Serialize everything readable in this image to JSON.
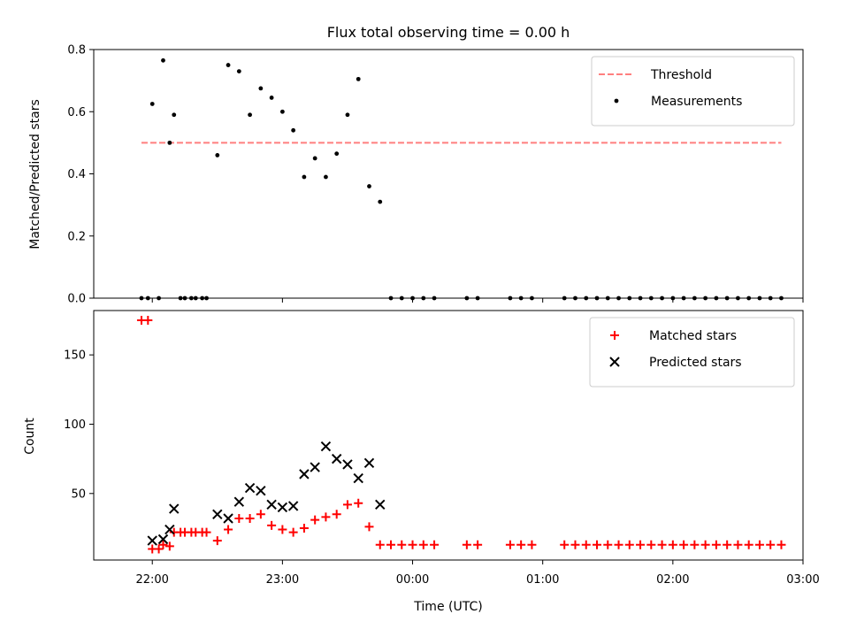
{
  "chart_data": {
    "type": "scatter",
    "title": "Flux total observing time = 0.00 h",
    "xlabel": "Time (UTC)",
    "x_tick_labels": [
      "22:00",
      "23:00",
      "00:00",
      "01:00",
      "02:00",
      "03:00"
    ],
    "x_ticks": [
      "2024-01-01 22:00",
      "2024-01-01 23:00",
      "2024-01-02 00:00",
      "2024-01-02 01:00",
      "2024-01-02 02:00",
      "2024-01-02 03:00"
    ],
    "xlim": [
      "2024-01-01 21:33",
      "2024-01-02 03:00"
    ],
    "panels": [
      {
        "ylabel": "Matched/Predicted stars",
        "ylim": [
          0,
          0.8
        ],
        "yticks": [
          0.0,
          0.2,
          0.4,
          0.6,
          0.8
        ],
        "ytick_labels": [
          "0.0",
          "0.2",
          "0.4",
          "0.6",
          "0.8"
        ],
        "legend_position": "upper right",
        "threshold": {
          "name": "Threshold",
          "y": 0.5,
          "x_start": "2024-01-01 21:55",
          "x_end": "2024-01-02 02:50",
          "color": "#ff7f7f",
          "style": "dashed"
        },
        "series": [
          {
            "name": "Measurements",
            "marker": "dot",
            "color": "#000000",
            "points": [
              [
                "2024-01-01 21:55",
                0.0
              ],
              [
                "2024-01-01 21:58",
                0.0
              ],
              [
                "2024-01-01 22:00",
                0.625
              ],
              [
                "2024-01-01 22:03",
                0.0
              ],
              [
                "2024-01-01 22:05",
                0.765
              ],
              [
                "2024-01-01 22:08",
                0.5
              ],
              [
                "2024-01-01 22:10",
                0.59
              ],
              [
                "2024-01-01 22:13",
                0.0
              ],
              [
                "2024-01-01 22:15",
                0.0
              ],
              [
                "2024-01-01 22:18",
                0.0
              ],
              [
                "2024-01-01 22:20",
                0.0
              ],
              [
                "2024-01-01 22:23",
                0.0
              ],
              [
                "2024-01-01 22:25",
                0.0
              ],
              [
                "2024-01-01 22:30",
                0.46
              ],
              [
                "2024-01-01 22:35",
                0.75
              ],
              [
                "2024-01-01 22:40",
                0.73
              ],
              [
                "2024-01-01 22:45",
                0.59
              ],
              [
                "2024-01-01 22:50",
                0.675
              ],
              [
                "2024-01-01 22:55",
                0.645
              ],
              [
                "2024-01-01 23:00",
                0.6
              ],
              [
                "2024-01-01 23:05",
                0.54
              ],
              [
                "2024-01-01 23:10",
                0.39
              ],
              [
                "2024-01-01 23:15",
                0.45
              ],
              [
                "2024-01-01 23:20",
                0.39
              ],
              [
                "2024-01-01 23:25",
                0.465
              ],
              [
                "2024-01-01 23:30",
                0.59
              ],
              [
                "2024-01-01 23:35",
                0.705
              ],
              [
                "2024-01-01 23:40",
                0.36
              ],
              [
                "2024-01-01 23:45",
                0.31
              ],
              [
                "2024-01-01 23:50",
                0.0
              ],
              [
                "2024-01-01 23:55",
                0.0
              ],
              [
                "2024-01-02 00:00",
                0.0
              ],
              [
                "2024-01-02 00:05",
                0.0
              ],
              [
                "2024-01-02 00:10",
                0.0
              ],
              [
                "2024-01-02 00:25",
                0.0
              ],
              [
                "2024-01-02 00:30",
                0.0
              ],
              [
                "2024-01-02 00:45",
                0.0
              ],
              [
                "2024-01-02 00:50",
                0.0
              ],
              [
                "2024-01-02 00:55",
                0.0
              ],
              [
                "2024-01-02 01:10",
                0.0
              ],
              [
                "2024-01-02 01:15",
                0.0
              ],
              [
                "2024-01-02 01:20",
                0.0
              ],
              [
                "2024-01-02 01:25",
                0.0
              ],
              [
                "2024-01-02 01:30",
                0.0
              ],
              [
                "2024-01-02 01:35",
                0.0
              ],
              [
                "2024-01-02 01:40",
                0.0
              ],
              [
                "2024-01-02 01:45",
                0.0
              ],
              [
                "2024-01-02 01:50",
                0.0
              ],
              [
                "2024-01-02 01:55",
                0.0
              ],
              [
                "2024-01-02 02:00",
                0.0
              ],
              [
                "2024-01-02 02:05",
                0.0
              ],
              [
                "2024-01-02 02:10",
                0.0
              ],
              [
                "2024-01-02 02:15",
                0.0
              ],
              [
                "2024-01-02 02:20",
                0.0
              ],
              [
                "2024-01-02 02:25",
                0.0
              ],
              [
                "2024-01-02 02:30",
                0.0
              ],
              [
                "2024-01-02 02:35",
                0.0
              ],
              [
                "2024-01-02 02:40",
                0.0
              ],
              [
                "2024-01-02 02:45",
                0.0
              ],
              [
                "2024-01-02 02:50",
                0.0
              ]
            ]
          }
        ]
      },
      {
        "ylabel": "Count",
        "ylim": [
          2,
          182
        ],
        "yticks": [
          50,
          100,
          150
        ],
        "ytick_labels": [
          "50",
          "100",
          "150"
        ],
        "legend_position": "upper right",
        "series": [
          {
            "name": "Matched stars",
            "marker": "plus",
            "color": "#ff0000",
            "points": [
              [
                "2024-01-01 21:55",
                175
              ],
              [
                "2024-01-01 21:58",
                175
              ],
              [
                "2024-01-01 22:00",
                10
              ],
              [
                "2024-01-01 22:03",
                10
              ],
              [
                "2024-01-01 22:05",
                13
              ],
              [
                "2024-01-01 22:08",
                12
              ],
              [
                "2024-01-01 22:10",
                22
              ],
              [
                "2024-01-01 22:13",
                22
              ],
              [
                "2024-01-01 22:15",
                22
              ],
              [
                "2024-01-01 22:18",
                22
              ],
              [
                "2024-01-01 22:20",
                22
              ],
              [
                "2024-01-01 22:23",
                22
              ],
              [
                "2024-01-01 22:25",
                22
              ],
              [
                "2024-01-01 22:30",
                16
              ],
              [
                "2024-01-01 22:35",
                24
              ],
              [
                "2024-01-01 22:40",
                32
              ],
              [
                "2024-01-01 22:45",
                32
              ],
              [
                "2024-01-01 22:50",
                35
              ],
              [
                "2024-01-01 22:55",
                27
              ],
              [
                "2024-01-01 23:00",
                24
              ],
              [
                "2024-01-01 23:05",
                22
              ],
              [
                "2024-01-01 23:10",
                25
              ],
              [
                "2024-01-01 23:15",
                31
              ],
              [
                "2024-01-01 23:20",
                33
              ],
              [
                "2024-01-01 23:25",
                35
              ],
              [
                "2024-01-01 23:30",
                42
              ],
              [
                "2024-01-01 23:35",
                43
              ],
              [
                "2024-01-01 23:40",
                26
              ],
              [
                "2024-01-01 23:45",
                13
              ],
              [
                "2024-01-01 23:50",
                13
              ],
              [
                "2024-01-01 23:55",
                13
              ],
              [
                "2024-01-02 00:00",
                13
              ],
              [
                "2024-01-02 00:05",
                13
              ],
              [
                "2024-01-02 00:10",
                13
              ],
              [
                "2024-01-02 00:25",
                13
              ],
              [
                "2024-01-02 00:30",
                13
              ],
              [
                "2024-01-02 00:45",
                13
              ],
              [
                "2024-01-02 00:50",
                13
              ],
              [
                "2024-01-02 00:55",
                13
              ],
              [
                "2024-01-02 01:10",
                13
              ],
              [
                "2024-01-02 01:15",
                13
              ],
              [
                "2024-01-02 01:20",
                13
              ],
              [
                "2024-01-02 01:25",
                13
              ],
              [
                "2024-01-02 01:30",
                13
              ],
              [
                "2024-01-02 01:35",
                13
              ],
              [
                "2024-01-02 01:40",
                13
              ],
              [
                "2024-01-02 01:45",
                13
              ],
              [
                "2024-01-02 01:50",
                13
              ],
              [
                "2024-01-02 01:55",
                13
              ],
              [
                "2024-01-02 02:00",
                13
              ],
              [
                "2024-01-02 02:05",
                13
              ],
              [
                "2024-01-02 02:10",
                13
              ],
              [
                "2024-01-02 02:15",
                13
              ],
              [
                "2024-01-02 02:20",
                13
              ],
              [
                "2024-01-02 02:25",
                13
              ],
              [
                "2024-01-02 02:30",
                13
              ],
              [
                "2024-01-02 02:35",
                13
              ],
              [
                "2024-01-02 02:40",
                13
              ],
              [
                "2024-01-02 02:45",
                13
              ],
              [
                "2024-01-02 02:50",
                13
              ]
            ]
          },
          {
            "name": "Predicted stars",
            "marker": "x",
            "color": "#000000",
            "points": [
              [
                "2024-01-01 22:00",
                16
              ],
              [
                "2024-01-01 22:05",
                17
              ],
              [
                "2024-01-01 22:08",
                24
              ],
              [
                "2024-01-01 22:10",
                39
              ],
              [
                "2024-01-01 22:30",
                35
              ],
              [
                "2024-01-01 22:35",
                32
              ],
              [
                "2024-01-01 22:40",
                44
              ],
              [
                "2024-01-01 22:45",
                54
              ],
              [
                "2024-01-01 22:50",
                52
              ],
              [
                "2024-01-01 22:55",
                42
              ],
              [
                "2024-01-01 23:00",
                40
              ],
              [
                "2024-01-01 23:05",
                41
              ],
              [
                "2024-01-01 23:10",
                64
              ],
              [
                "2024-01-01 23:15",
                69
              ],
              [
                "2024-01-01 23:20",
                84
              ],
              [
                "2024-01-01 23:25",
                75
              ],
              [
                "2024-01-01 23:30",
                71
              ],
              [
                "2024-01-01 23:35",
                61
              ],
              [
                "2024-01-01 23:40",
                72
              ],
              [
                "2024-01-01 23:45",
                42
              ]
            ]
          }
        ]
      }
    ]
  }
}
